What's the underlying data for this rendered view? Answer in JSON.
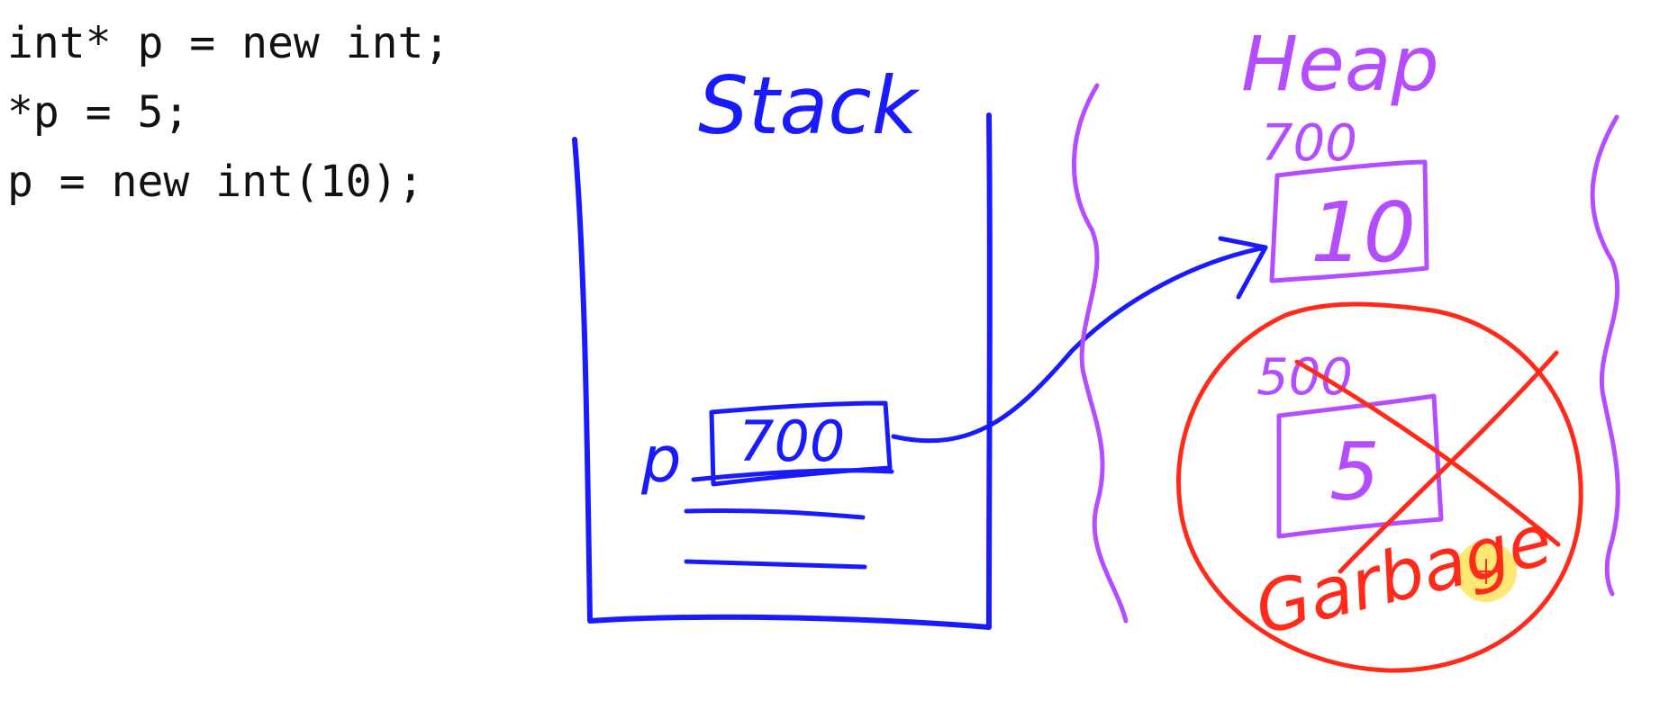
{
  "code_lines": [
    "int* p = new int;",
    "*p = 5;",
    "p = new int(10);"
  ],
  "stack": {
    "label": "Stack",
    "var_name": "p",
    "var_value": "700"
  },
  "heap": {
    "label": "Heap",
    "block_a": {
      "address": "700",
      "value": "10"
    },
    "block_b": {
      "address": "500",
      "value": "5"
    },
    "garbage_label": "Garbage"
  },
  "colors": {
    "stack": "#1a1aff",
    "heap": "#b44cff",
    "garbage": "#ff2a1a",
    "code": "#111111",
    "cursor_highlight": "#ffd400"
  }
}
